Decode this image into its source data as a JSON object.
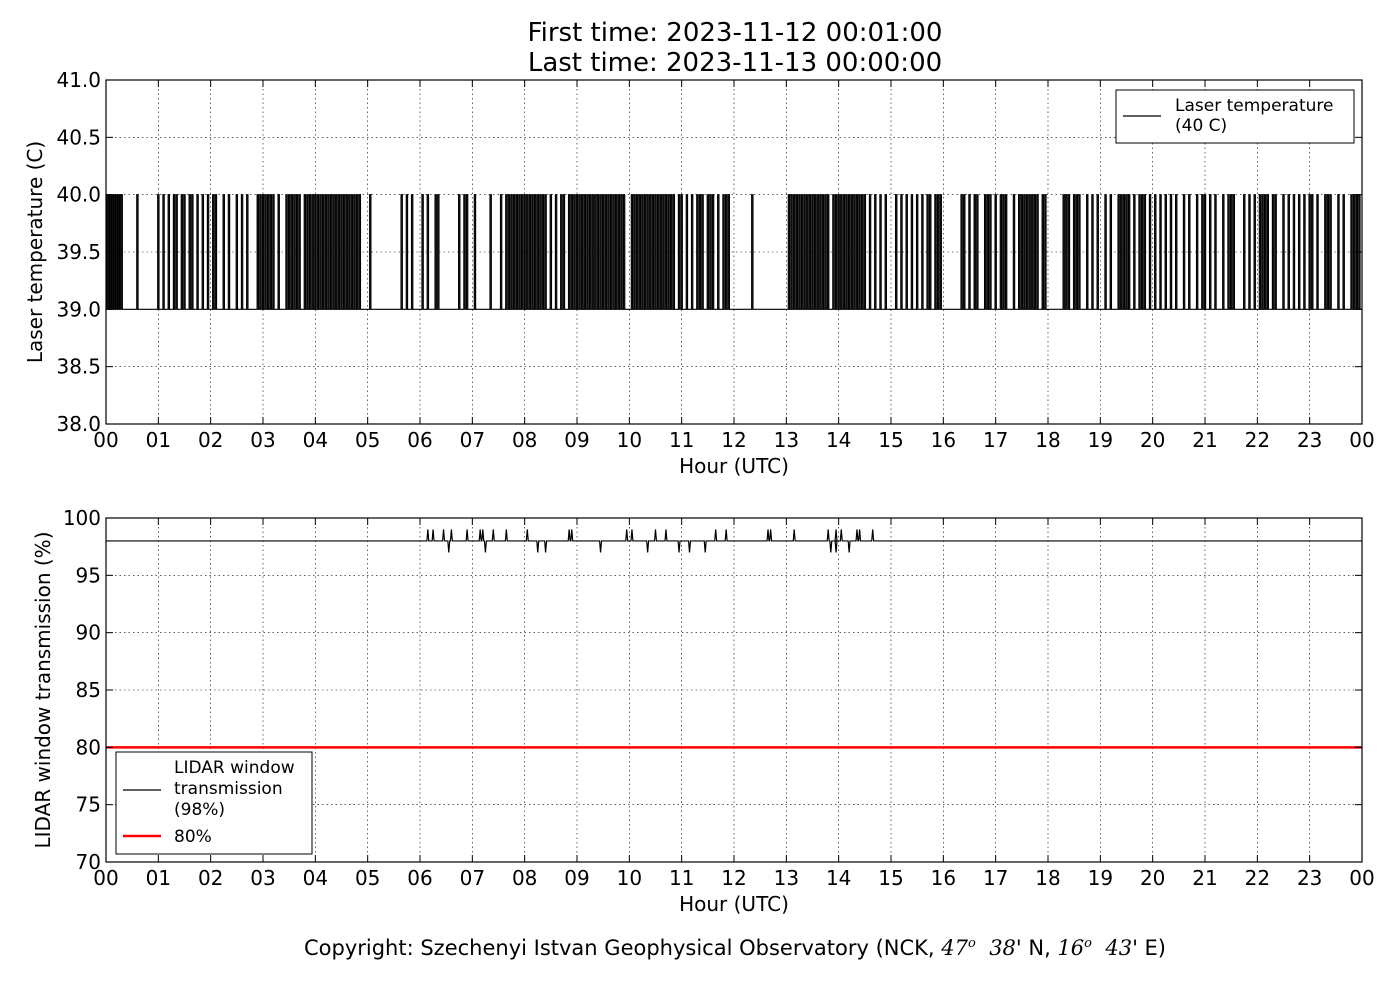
{
  "header": {
    "title_line1": "First time: 2023-11-12 00:01:00",
    "title_line2": "Last time: 2023-11-13 00:00:00"
  },
  "footer": {
    "copyright_prefix": "Copyright: Szechenyi Istvan Geophysical Observatory (NCK, ",
    "lat_deg": "47",
    "lat_min": "38' N, ",
    "lon_deg": "16",
    "lon_min": "43' E)",
    "degree_symbol": "o"
  },
  "chart_data": [
    {
      "type": "line",
      "xlabel": "Hour (UTC)",
      "ylabel": "Laser temperature (C)",
      "xlim": [
        0,
        24
      ],
      "ylim": [
        38.0,
        41.0
      ],
      "x_tick_labels": [
        "00",
        "01",
        "02",
        "03",
        "04",
        "05",
        "06",
        "07",
        "08",
        "09",
        "10",
        "11",
        "12",
        "13",
        "14",
        "15",
        "16",
        "17",
        "18",
        "19",
        "20",
        "21",
        "22",
        "23",
        "00"
      ],
      "y_tick_labels": [
        "38.0",
        "38.5",
        "39.0",
        "39.5",
        "40.0",
        "40.5",
        "41.0"
      ],
      "grid": true,
      "legend_position": "top-right",
      "series": [
        {
          "name": "Laser temperature\n(40 C)",
          "color": "#000000",
          "baseline": 39.0,
          "spike_value": 40.0,
          "spike_hours": [
            0.02,
            0.05,
            0.09,
            0.12,
            0.16,
            0.2,
            0.23,
            0.27,
            0.3,
            0.6,
            1.0,
            1.1,
            1.2,
            1.3,
            1.35,
            1.45,
            1.5,
            1.6,
            1.65,
            1.75,
            1.85,
            1.95,
            2.05,
            2.1,
            2.25,
            2.35,
            2.5,
            2.6,
            2.7,
            2.9,
            2.95,
            3.0,
            3.05,
            3.1,
            3.15,
            3.2,
            3.3,
            3.45,
            3.5,
            3.55,
            3.6,
            3.65,
            3.7,
            3.8,
            3.85,
            3.9,
            3.95,
            4.0,
            4.05,
            4.1,
            4.15,
            4.2,
            4.25,
            4.3,
            4.35,
            4.4,
            4.45,
            4.5,
            4.55,
            4.6,
            4.65,
            4.7,
            4.75,
            4.8,
            4.85,
            5.05,
            5.65,
            5.75,
            5.85,
            6.05,
            6.15,
            6.3,
            6.35,
            6.75,
            6.85,
            6.9,
            7.05,
            7.35,
            7.55,
            7.65,
            7.7,
            7.75,
            7.8,
            7.85,
            7.9,
            7.95,
            8.0,
            8.05,
            8.1,
            8.15,
            8.2,
            8.25,
            8.3,
            8.35,
            8.4,
            8.5,
            8.6,
            8.7,
            8.75,
            8.85,
            8.9,
            8.95,
            9.0,
            9.05,
            9.1,
            9.15,
            9.2,
            9.25,
            9.3,
            9.35,
            9.4,
            9.45,
            9.5,
            9.55,
            9.6,
            9.65,
            9.7,
            9.75,
            9.8,
            9.85,
            9.9,
            10.05,
            10.1,
            10.15,
            10.2,
            10.25,
            10.3,
            10.35,
            10.4,
            10.45,
            10.5,
            10.55,
            10.6,
            10.65,
            10.7,
            10.75,
            10.8,
            10.85,
            10.95,
            11.0,
            11.1,
            11.2,
            11.3,
            11.35,
            11.4,
            11.5,
            11.55,
            11.6,
            11.7,
            11.8,
            11.85,
            11.9,
            12.35,
            13.05,
            13.1,
            13.15,
            13.2,
            13.25,
            13.3,
            13.35,
            13.4,
            13.45,
            13.5,
            13.55,
            13.6,
            13.65,
            13.7,
            13.75,
            13.8,
            13.9,
            13.95,
            14.0,
            14.05,
            14.1,
            14.15,
            14.2,
            14.25,
            14.3,
            14.35,
            14.4,
            14.45,
            14.5,
            14.6,
            14.7,
            14.8,
            14.9,
            15.1,
            15.2,
            15.3,
            15.4,
            15.5,
            15.6,
            15.7,
            15.75,
            15.85,
            15.9,
            15.95,
            16.35,
            16.4,
            16.5,
            16.6,
            16.65,
            16.8,
            16.85,
            16.9,
            17.0,
            17.1,
            17.15,
            17.2,
            17.35,
            17.45,
            17.5,
            17.55,
            17.6,
            17.65,
            17.7,
            17.75,
            17.8,
            17.9,
            17.95,
            18.3,
            18.35,
            18.4,
            18.5,
            18.55,
            18.6,
            18.75,
            18.85,
            18.95,
            19.1,
            19.2,
            19.35,
            19.4,
            19.45,
            19.5,
            19.55,
            19.65,
            19.75,
            19.8,
            19.85,
            19.95,
            20.05,
            20.15,
            20.25,
            20.35,
            20.45,
            20.6,
            20.7,
            20.85,
            20.95,
            21.0,
            21.1,
            21.2,
            21.35,
            21.45,
            21.5,
            21.55,
            21.75,
            21.85,
            21.95,
            22.05,
            22.1,
            22.15,
            22.2,
            22.3,
            22.35,
            22.5,
            22.6,
            22.7,
            22.8,
            22.9,
            23.0,
            23.05,
            23.15,
            23.3,
            23.35,
            23.4,
            23.55,
            23.65,
            23.8,
            23.85,
            23.9,
            23.95
          ]
        }
      ]
    },
    {
      "type": "line",
      "xlabel": "Hour (UTC)",
      "ylabel": "LIDAR window transmission (%)",
      "xlim": [
        0,
        24
      ],
      "ylim": [
        70,
        100
      ],
      "x_tick_labels": [
        "00",
        "01",
        "02",
        "03",
        "04",
        "05",
        "06",
        "07",
        "08",
        "09",
        "10",
        "11",
        "12",
        "13",
        "14",
        "15",
        "16",
        "17",
        "18",
        "19",
        "20",
        "21",
        "22",
        "23",
        "00"
      ],
      "y_tick_labels": [
        "70",
        "75",
        "80",
        "85",
        "90",
        "95",
        "100"
      ],
      "grid": true,
      "legend_position": "lower-left",
      "series": [
        {
          "name": "LIDAR window\ntransmission\n(98%)",
          "color": "#000000",
          "baseline": 98,
          "up_spike_value": 99,
          "down_spike_value": 97,
          "up_spike_hours": [
            6.15,
            6.25,
            6.45,
            6.6,
            6.9,
            7.15,
            7.2,
            7.4,
            7.65,
            8.05,
            8.85,
            8.9,
            9.95,
            10.05,
            10.5,
            10.7,
            11.65,
            11.85,
            12.65,
            12.7,
            13.15,
            13.8,
            13.95,
            14.05,
            14.35,
            14.4,
            14.65
          ],
          "down_spike_hours": [
            6.55,
            7.25,
            8.25,
            8.4,
            9.45,
            10.35,
            10.95,
            11.15,
            11.45,
            13.85,
            13.95,
            14.2
          ]
        },
        {
          "name": "80%",
          "color": "#ff0000",
          "constant": 80
        }
      ]
    }
  ]
}
